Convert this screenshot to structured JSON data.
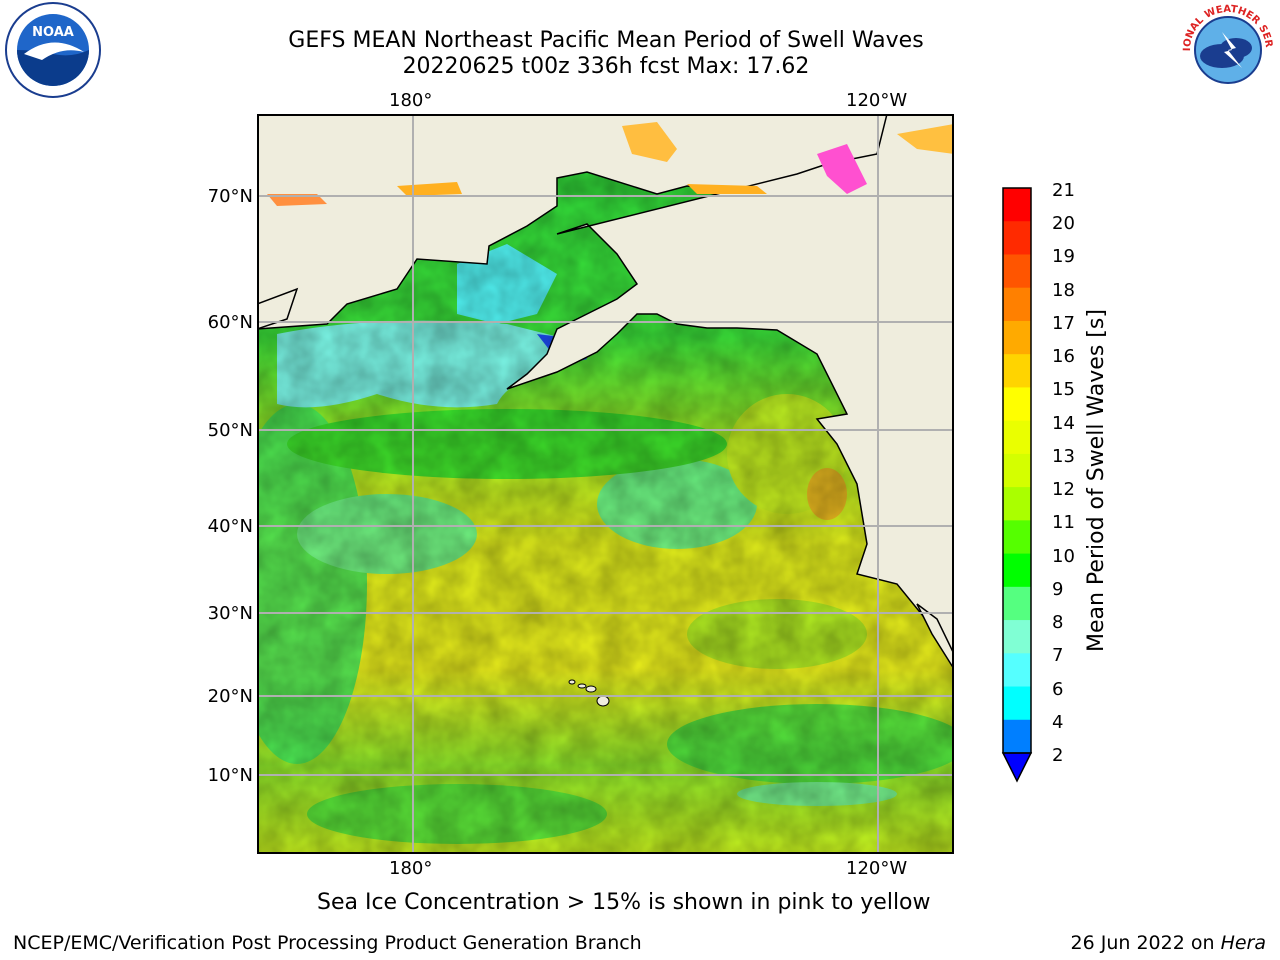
{
  "header": {
    "title_line1": "GEFS MEAN Northeast Pacific Mean Period of Swell Waves",
    "title_line2": "20220625 t00z 336h fcst   Max: 17.62"
  },
  "logos": {
    "left": "NOAA",
    "right": "NATIONAL WEATHER SERVICE"
  },
  "map": {
    "lon_labels_top": [
      "180°",
      "120°W"
    ],
    "lon_labels_bottom": [
      "180°",
      "120°W"
    ],
    "lat_labels": [
      "70°N",
      "60°N",
      "50°N",
      "40°N",
      "30°N",
      "20°N",
      "10°N"
    ],
    "colors": {
      "land": "#efeddd",
      "ocean_high": "#e6f21c",
      "ocean_mid": "#b8ee1c",
      "ocean_low": "#28e03c",
      "ocean_cool": "#5ef594",
      "ice": "#ffb020"
    }
  },
  "colorbar": {
    "label": "Mean Period of Swell Waves [s]",
    "ticks": [
      "21",
      "20",
      "19",
      "18",
      "17",
      "16",
      "15",
      "14",
      "13",
      "12",
      "11",
      "10",
      "9",
      "8",
      "7",
      "6",
      "4",
      "2"
    ],
    "colors": [
      "#ff0000",
      "#ff2a00",
      "#ff5500",
      "#ff8000",
      "#ffaa00",
      "#ffd400",
      "#ffff00",
      "#eaff00",
      "#d4ff00",
      "#aaff00",
      "#55ff00",
      "#00ff00",
      "#55ff80",
      "#80ffd4",
      "#55ffff",
      "#00ffff",
      "#007fff",
      "#0000ff"
    ]
  },
  "footnote": "Sea Ice Concentration > 15% is shown in pink to yellow",
  "footer": {
    "left": "NCEP/EMC/Verification Post Processing Product Generation Branch",
    "right_date": "26 Jun 2022 on ",
    "right_host": "Hera"
  }
}
